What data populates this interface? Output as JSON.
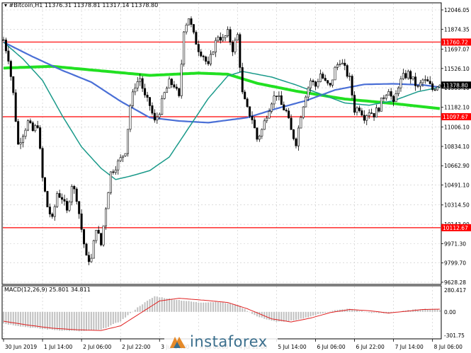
{
  "header": {
    "symbol": "#Bitcoin,H1",
    "ohlc": "11376.31 11378.81 11317.14 11378.80"
  },
  "brand": {
    "text": "instaforex"
  },
  "chart_data": {
    "type": "candlestick",
    "ylim": [
      9628.28,
      12046.05
    ],
    "y_ticks": [
      12046.05,
      11874.35,
      11697.07,
      11526.1,
      11355.1,
      11182.1,
      11006.1,
      10834.1,
      10662.9,
      10491.1,
      10314.5,
      10143.0,
      9971.3,
      9799.7,
      9628.28
    ],
    "y_tick_labels": [
      "12046.05",
      "11874.35",
      "11697.07",
      "11526.10",
      "11355.10",
      "11182.10",
      "11006.10",
      "10834.10",
      "10662.90",
      "10491.10",
      "10314.50",
      "10143.00",
      "9971.30",
      "9799.70",
      "9628.28"
    ],
    "x_tick_labels": [
      "30 Jun 2019",
      "1 Jul 14:00",
      "2 Jul 06:00",
      "2 Jul 22:00",
      "3 Jul 14:00",
      "4 Jul 06:00",
      "4 Jul 22:00",
      "5 Jul 14:00",
      "6 Jul 06:00",
      "6 Jul 22:00",
      "7 Jul 14:00",
      "8 Jul 06:00"
    ],
    "x_tick_index": [
      0,
      16,
      32,
      48,
      64,
      80,
      96,
      112,
      128,
      144,
      160,
      176
    ],
    "n_bars": 180,
    "levels": [
      {
        "value": 11760.72,
        "label": "11760.72",
        "color": "#ff0000"
      },
      {
        "value": 11097.67,
        "label": "11097.67",
        "color": "#ff0000"
      },
      {
        "value": 10112.67,
        "label": "10112.67",
        "color": "#ff0000"
      }
    ],
    "current_price": {
      "value": 11378.8,
      "label": "11378.80"
    },
    "price_anchors": [
      [
        0,
        11780
      ],
      [
        2,
        11620
      ],
      [
        4,
        11300
      ],
      [
        6,
        10850
      ],
      [
        8,
        10950
      ],
      [
        10,
        11050
      ],
      [
        12,
        10970
      ],
      [
        14,
        11030
      ],
      [
        16,
        10550
      ],
      [
        18,
        10300
      ],
      [
        20,
        10180
      ],
      [
        22,
        10420
      ],
      [
        24,
        10380
      ],
      [
        26,
        10250
      ],
      [
        28,
        10500
      ],
      [
        30,
        10380
      ],
      [
        32,
        10100
      ],
      [
        34,
        9840
      ],
      [
        36,
        9830
      ],
      [
        38,
        10120
      ],
      [
        40,
        9960
      ],
      [
        42,
        10300
      ],
      [
        44,
        10600
      ],
      [
        46,
        10660
      ],
      [
        48,
        10720
      ],
      [
        50,
        10800
      ],
      [
        52,
        11200
      ],
      [
        54,
        11380
      ],
      [
        56,
        11440
      ],
      [
        58,
        11270
      ],
      [
        60,
        11200
      ],
      [
        62,
        11050
      ],
      [
        64,
        11150
      ],
      [
        66,
        11300
      ],
      [
        68,
        11400
      ],
      [
        70,
        11380
      ],
      [
        72,
        11260
      ],
      [
        74,
        11880
      ],
      [
        76,
        11980
      ],
      [
        78,
        11820
      ],
      [
        80,
        11700
      ],
      [
        82,
        11640
      ],
      [
        84,
        11540
      ],
      [
        86,
        11700
      ],
      [
        88,
        11820
      ],
      [
        90,
        11780
      ],
      [
        92,
        11840
      ],
      [
        94,
        11700
      ],
      [
        96,
        11820
      ],
      [
        98,
        11300
      ],
      [
        100,
        11160
      ],
      [
        102,
        11080
      ],
      [
        104,
        10900
      ],
      [
        106,
        10980
      ],
      [
        108,
        11120
      ],
      [
        110,
        11240
      ],
      [
        112,
        11300
      ],
      [
        114,
        11200
      ],
      [
        116,
        11140
      ],
      [
        118,
        10970
      ],
      [
        120,
        10870
      ],
      [
        122,
        11120
      ],
      [
        124,
        11300
      ],
      [
        126,
        11420
      ],
      [
        128,
        11370
      ],
      [
        130,
        11480
      ],
      [
        132,
        11400
      ],
      [
        134,
        11360
      ],
      [
        136,
        11520
      ],
      [
        138,
        11600
      ],
      [
        140,
        11520
      ],
      [
        142,
        11430
      ],
      [
        144,
        11160
      ],
      [
        146,
        11180
      ],
      [
        148,
        11100
      ],
      [
        150,
        11150
      ],
      [
        152,
        11120
      ],
      [
        154,
        11180
      ],
      [
        156,
        11280
      ],
      [
        158,
        11350
      ],
      [
        160,
        11200
      ],
      [
        162,
        11380
      ],
      [
        164,
        11450
      ],
      [
        166,
        11480
      ],
      [
        168,
        11420
      ],
      [
        170,
        11350
      ],
      [
        172,
        11420
      ],
      [
        174,
        11400
      ],
      [
        176,
        11340
      ],
      [
        178,
        11380
      ],
      [
        179,
        11378.8
      ]
    ],
    "series": [
      {
        "period": 200,
        "values": [
          [
            0,
            11530
          ],
          [
            20,
            11545
          ],
          [
            40,
            11505
          ],
          [
            60,
            11465
          ],
          [
            80,
            11485
          ],
          [
            92,
            11475
          ],
          [
            104,
            11395
          ],
          [
            120,
            11325
          ],
          [
            140,
            11255
          ],
          [
            160,
            11215
          ],
          [
            179,
            11170
          ]
        ]
      },
      {
        "period": 100,
        "values": [
          [
            0,
            11760
          ],
          [
            12,
            11630
          ],
          [
            24,
            11510
          ],
          [
            36,
            11405
          ],
          [
            48,
            11235
          ],
          [
            60,
            11090
          ],
          [
            72,
            11060
          ],
          [
            84,
            11045
          ],
          [
            100,
            11090
          ],
          [
            112,
            11170
          ],
          [
            124,
            11240
          ],
          [
            136,
            11335
          ],
          [
            148,
            11385
          ],
          [
            160,
            11390
          ],
          [
            172,
            11380
          ],
          [
            179,
            11360
          ]
        ]
      },
      {
        "period": 50,
        "values": [
          [
            0,
            11760
          ],
          [
            8,
            11610
          ],
          [
            16,
            11420
          ],
          [
            24,
            11110
          ],
          [
            32,
            10830
          ],
          [
            40,
            10640
          ],
          [
            46,
            10540
          ],
          [
            52,
            10570
          ],
          [
            60,
            10620
          ],
          [
            68,
            10740
          ],
          [
            76,
            11000
          ],
          [
            84,
            11260
          ],
          [
            92,
            11460
          ],
          [
            98,
            11500
          ],
          [
            110,
            11450
          ],
          [
            120,
            11380
          ],
          [
            130,
            11300
          ],
          [
            140,
            11220
          ],
          [
            150,
            11200
          ],
          [
            160,
            11240
          ],
          [
            170,
            11320
          ],
          [
            179,
            11360
          ]
        ]
      }
    ],
    "macd": {
      "label": "MACD(12,26,9) 25.801 34.811",
      "ylim": [
        -301.75,
        280.417
      ],
      "y_tick_labels": [
        "280.417",
        "0.00",
        "-301.75"
      ],
      "histogram_anchors": [
        [
          0,
          -150
        ],
        [
          8,
          -190
        ],
        [
          16,
          -220
        ],
        [
          24,
          -240
        ],
        [
          32,
          -250
        ],
        [
          40,
          -230
        ],
        [
          48,
          -120
        ],
        [
          56,
          80
        ],
        [
          62,
          200
        ],
        [
          70,
          160
        ],
        [
          80,
          120
        ],
        [
          88,
          130
        ],
        [
          96,
          90
        ],
        [
          104,
          -60
        ],
        [
          112,
          -130
        ],
        [
          120,
          -110
        ],
        [
          128,
          -40
        ],
        [
          136,
          20
        ],
        [
          142,
          40
        ],
        [
          150,
          -10
        ],
        [
          158,
          -20
        ],
        [
          166,
          20
        ],
        [
          172,
          40
        ],
        [
          178,
          30
        ],
        [
          179,
          26
        ]
      ],
      "signal_anchors": [
        [
          0,
          -120
        ],
        [
          10,
          -170
        ],
        [
          20,
          -210
        ],
        [
          30,
          -230
        ],
        [
          40,
          -240
        ],
        [
          48,
          -180
        ],
        [
          56,
          -20
        ],
        [
          64,
          140
        ],
        [
          72,
          175
        ],
        [
          84,
          145
        ],
        [
          92,
          120
        ],
        [
          100,
          40
        ],
        [
          110,
          -90
        ],
        [
          118,
          -130
        ],
        [
          126,
          -80
        ],
        [
          134,
          -10
        ],
        [
          142,
          30
        ],
        [
          150,
          15
        ],
        [
          158,
          -15
        ],
        [
          166,
          10
        ],
        [
          172,
          30
        ],
        [
          179,
          35
        ]
      ]
    }
  }
}
